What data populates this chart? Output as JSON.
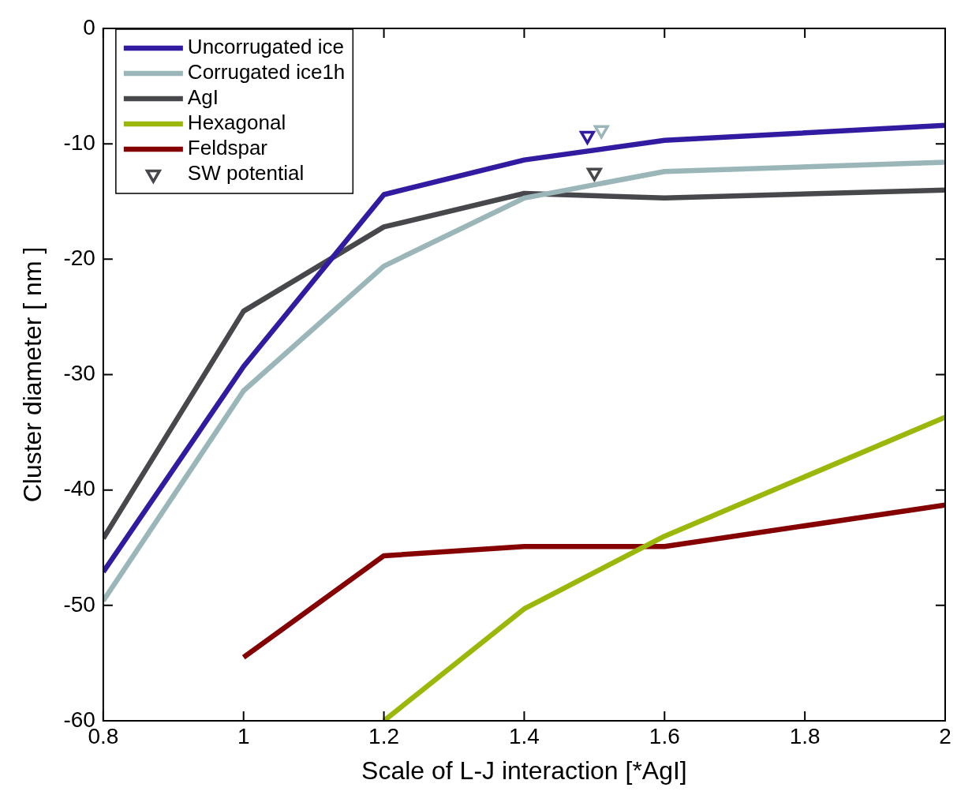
{
  "chart_data": {
    "type": "line",
    "xlabel": "Scale of L-J interaction [*AgI]",
    "ylabel": "Cluster diameter [ nm ]",
    "xlim": [
      0.8,
      2
    ],
    "xticks": [
      0.8,
      1,
      1.2,
      1.4,
      1.6,
      1.8,
      2
    ],
    "ylim": [
      -60,
      0
    ],
    "yticks": [
      -60,
      -50,
      -40,
      -30,
      -20,
      -10,
      0
    ],
    "grid": false,
    "legend": "top left",
    "line_style": "solid",
    "series": [
      {
        "name": "Uncorrugated ice",
        "color": "#321ba0",
        "x": [
          0.8,
          1,
          1.2,
          1.4,
          1.6,
          2
        ],
        "values": [
          -47.1,
          -29.3,
          -14.4,
          -11.4,
          -9.7,
          -8.4
        ]
      },
      {
        "name": "Corrugated ice1h",
        "color": "#9bb6b8",
        "x": [
          0.8,
          1,
          1.2,
          1.4,
          1.6,
          2
        ],
        "values": [
          -49.6,
          -31.4,
          -20.6,
          -14.7,
          -12.4,
          -11.6
        ]
      },
      {
        "name": "AgI",
        "color": "#47484c",
        "x": [
          0.8,
          1,
          1.2,
          1.4,
          1.6,
          2
        ],
        "values": [
          -44.2,
          -24.5,
          -17.2,
          -14.3,
          -14.7,
          -14.0
        ]
      },
      {
        "name": "Hexagonal",
        "color": "#9bb80a",
        "x": [
          1.2,
          1.4,
          1.6,
          2
        ],
        "values": [
          -60,
          -50.3,
          -44.0,
          -33.7
        ]
      },
      {
        "name": "Feldspar",
        "color": "#850000",
        "x": [
          1,
          1.2,
          1.4,
          1.6,
          2
        ],
        "values": [
          -54.5,
          -45.7,
          -44.9,
          -44.9,
          -41.3
        ]
      },
      {
        "name": "SW potential",
        "type": "scatter",
        "marker": "triangle",
        "color": "#47484c",
        "x": [
          1.5
        ],
        "values": [
          -12.5
        ]
      },
      {
        "type": "scatter",
        "marker": "triangle",
        "color": "#321ba0",
        "x": [
          1.49
        ],
        "values": [
          -9.3
        ]
      },
      {
        "type": "scatter",
        "marker": "triangle",
        "color": "#9bb6b8",
        "x": [
          1.51
        ],
        "values": [
          -8.8
        ]
      }
    ]
  }
}
